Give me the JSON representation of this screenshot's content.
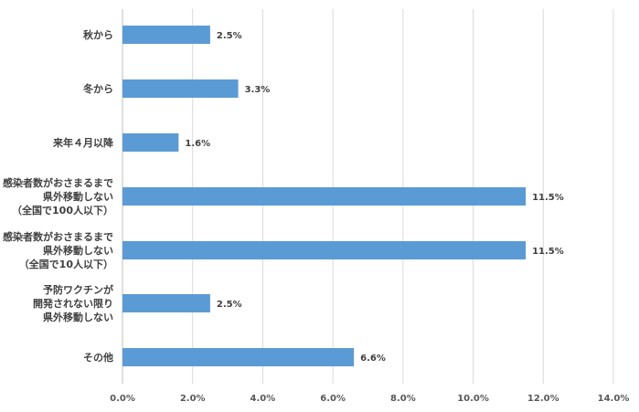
{
  "chart_data": {
    "type": "bar",
    "orientation": "horizontal",
    "categories": [
      [
        "秋から"
      ],
      [
        "冬から"
      ],
      [
        "来年４月以降"
      ],
      [
        "感染者数がおさまるまで",
        "県外移動しない",
        "（全国で100人以下）"
      ],
      [
        "感染者数がおさまるまで",
        "県外移動しない",
        "（全国で10人以下）"
      ],
      [
        "予防ワクチンが",
        "開発されない限り",
        "県外移動しない"
      ],
      [
        "その他"
      ]
    ],
    "values": [
      2.5,
      3.3,
      1.6,
      11.5,
      11.5,
      2.5,
      6.6
    ],
    "value_labels": [
      "2.5%",
      "3.3%",
      "1.6%",
      "11.5%",
      "11.5%",
      "2.5%",
      "6.6%"
    ],
    "x_ticks": [
      "0.0%",
      "2.0%",
      "4.0%",
      "6.0%",
      "8.0%",
      "10.0%",
      "12.0%",
      "14.0%"
    ],
    "xlim": [
      0,
      14
    ],
    "grid": "vertical",
    "bar_color": "#5b9bd5",
    "grid_color": "#d9d9d9"
  }
}
